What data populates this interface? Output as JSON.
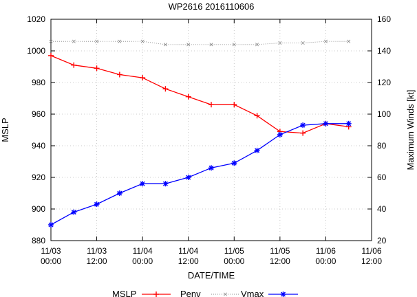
{
  "chart_data": {
    "type": "line",
    "title": "WP2616 2016110606",
    "xlabel": "DATE/TIME",
    "ylabel_left": "MSLP",
    "ylabel_right": "Maximum Winds [kt]",
    "x_ticks": [
      {
        "line1": "11/03",
        "line2": "00:00"
      },
      {
        "line1": "11/03",
        "line2": "12:00"
      },
      {
        "line1": "11/04",
        "line2": "00:00"
      },
      {
        "line1": "11/04",
        "line2": "12:00"
      },
      {
        "line1": "11/05",
        "line2": "00:00"
      },
      {
        "line1": "11/05",
        "line2": "12:00"
      },
      {
        "line1": "11/06",
        "line2": "00:00"
      },
      {
        "line1": "11/06",
        "line2": "12:00"
      }
    ],
    "x_hours_range": [
      0,
      84
    ],
    "y_left_range": [
      880,
      1020
    ],
    "y_left_ticks": [
      880,
      900,
      920,
      940,
      960,
      980,
      1000,
      1020
    ],
    "y_right_range": [
      20,
      160
    ],
    "y_right_ticks": [
      20,
      40,
      60,
      80,
      100,
      120,
      140,
      160
    ],
    "x_hours": [
      0,
      6,
      12,
      18,
      24,
      30,
      36,
      42,
      48,
      54,
      60,
      66,
      72,
      78
    ],
    "series": [
      {
        "name": "MSLP",
        "axis": "left",
        "color": "#ff0000",
        "marker": "plus",
        "values": [
          997,
          991,
          989,
          985,
          983,
          976,
          971,
          966,
          966,
          959,
          949,
          948,
          954,
          952
        ]
      },
      {
        "name": "Penv",
        "axis": "left",
        "color": "#888888",
        "marker": "cross",
        "dotted": true,
        "values": [
          1006,
          1006,
          1006,
          1006,
          1006,
          1004,
          1004,
          1004,
          1004,
          1004,
          1005,
          1005,
          1006,
          1006
        ]
      },
      {
        "name": "Vmax",
        "axis": "right",
        "color": "#0000ff",
        "marker": "star",
        "values": [
          30,
          38,
          43,
          50,
          56,
          56,
          60,
          66,
          69,
          77,
          87,
          93,
          94,
          94
        ]
      }
    ],
    "legend": {
      "placement": "bottom"
    }
  }
}
